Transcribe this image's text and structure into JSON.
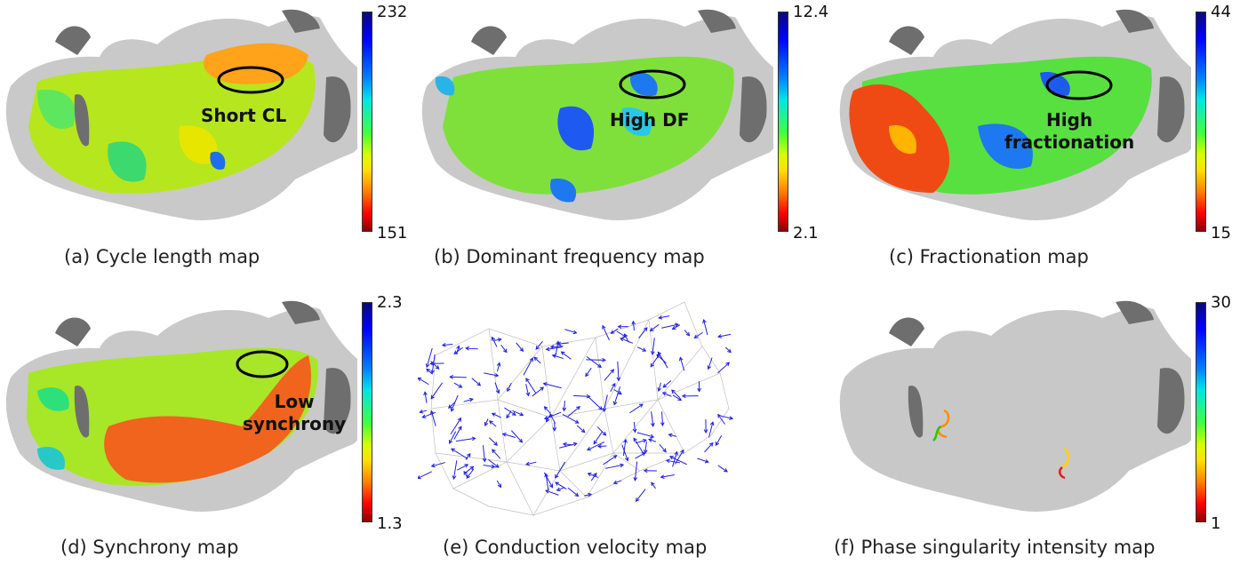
{
  "panels": [
    {
      "caption": "(a) Cycle length map",
      "cb_max": "232",
      "cb_min": "151",
      "annotation": [
        "Short CL"
      ]
    },
    {
      "caption": "(b) Dominant frequency map",
      "cb_max": "12.4",
      "cb_min": "2.1",
      "annotation": [
        "High DF"
      ]
    },
    {
      "caption": "(c) Fractionation map",
      "cb_max": "44",
      "cb_min": "15",
      "annotation": [
        "High",
        "fractionation"
      ]
    },
    {
      "caption": "(d) Synchrony map",
      "cb_max": "2.3",
      "cb_min": "1.3",
      "annotation": [
        "Low",
        "synchrony"
      ]
    },
    {
      "caption": "(e) Conduction velocity map"
    },
    {
      "caption": "(f) Phase singularity intensity map",
      "cb_max": "30",
      "cb_min": "1"
    }
  ],
  "colors": {
    "tissue_gray": "#c8c8c8",
    "dark_gray": "#6e6e6e",
    "arrow_blue": "#1f1fe6",
    "annotation_ellipse": "#000000"
  }
}
